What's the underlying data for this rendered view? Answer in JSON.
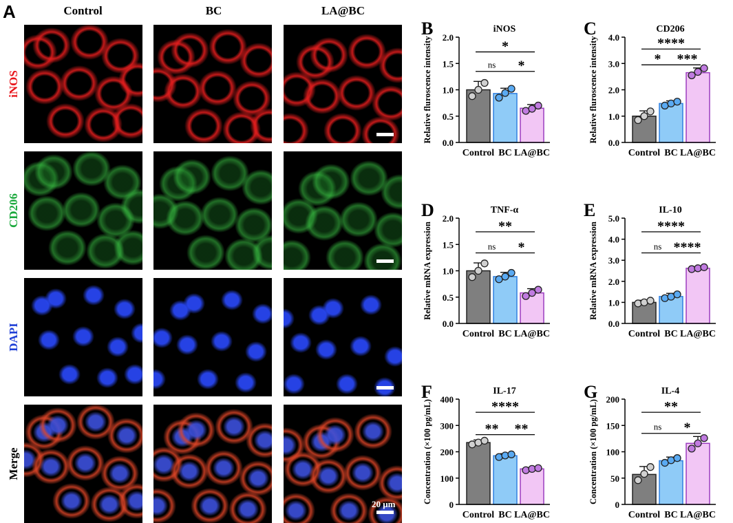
{
  "panel_a": {
    "letter": "A",
    "columns": [
      "Control",
      "BC",
      "LA@BC"
    ],
    "rows": [
      {
        "label": "iNOS",
        "color": "#e8141a"
      },
      {
        "label": "CD206",
        "color": "#19a83b"
      },
      {
        "label": "DAPI",
        "color": "#1f3fd6"
      },
      {
        "label": "Merge",
        "color": "#000000"
      }
    ],
    "scale_label": "20 μm"
  },
  "chart_data": [
    {
      "letter": "B",
      "type": "bar",
      "title": "iNOS",
      "xlabel": "",
      "ylabel": "Relative fluroscence intensity",
      "categories": [
        "Control",
        "BC",
        "LA@BC"
      ],
      "values": [
        1.0,
        0.93,
        0.65
      ],
      "errors": [
        0.16,
        0.1,
        0.07
      ],
      "points": [
        [
          0.88,
          1.0,
          1.13
        ],
        [
          0.85,
          0.94,
          1.02
        ],
        [
          0.6,
          0.64,
          0.7
        ]
      ],
      "ylim": [
        0,
        2.0
      ],
      "yticks": [
        "0.0",
        "0.5",
        "1.0",
        "1.5",
        "2.0"
      ],
      "sig": [
        {
          "from": 0,
          "to": 2,
          "label": "*",
          "y": 1.72
        },
        {
          "from": 0,
          "to": 1,
          "label": "ns",
          "y": 1.35
        },
        {
          "from": 1,
          "to": 2,
          "label": "*",
          "y": 1.35
        }
      ]
    },
    {
      "letter": "C",
      "type": "bar",
      "title": "CD206",
      "xlabel": "",
      "ylabel": "Relative fluroscence intensity",
      "categories": [
        "Control",
        "BC",
        "LA@BC"
      ],
      "values": [
        1.0,
        1.48,
        2.65
      ],
      "errors": [
        0.2,
        0.1,
        0.18
      ],
      "points": [
        [
          0.85,
          1.0,
          1.18
        ],
        [
          1.4,
          1.48,
          1.55
        ],
        [
          2.55,
          2.68,
          2.82
        ]
      ],
      "ylim": [
        0,
        4.0
      ],
      "yticks": [
        "0.0",
        "1.0",
        "2.0",
        "3.0",
        "4.0"
      ],
      "sig": [
        {
          "from": 0,
          "to": 2,
          "label": "****",
          "y": 3.55
        },
        {
          "from": 0,
          "to": 1,
          "label": "*",
          "y": 2.95
        },
        {
          "from": 1,
          "to": 2,
          "label": "***",
          "y": 2.95
        }
      ]
    },
    {
      "letter": "D",
      "type": "bar",
      "title": "TNF-α",
      "xlabel": "",
      "ylabel": "Relative mRNA expression",
      "categories": [
        "Control",
        "BC",
        "LA@BC"
      ],
      "values": [
        1.0,
        0.89,
        0.58
      ],
      "errors": [
        0.15,
        0.08,
        0.08
      ],
      "points": [
        [
          0.88,
          1.0,
          1.14
        ],
        [
          0.84,
          0.89,
          0.96
        ],
        [
          0.52,
          0.58,
          0.64
        ]
      ],
      "ylim": [
        0,
        2.0
      ],
      "yticks": [
        "0.0",
        "0.5",
        "1.0",
        "1.5",
        "2.0"
      ],
      "sig": [
        {
          "from": 0,
          "to": 2,
          "label": "**",
          "y": 1.74
        },
        {
          "from": 0,
          "to": 1,
          "label": "ns",
          "y": 1.34
        },
        {
          "from": 1,
          "to": 2,
          "label": "*",
          "y": 1.34
        }
      ]
    },
    {
      "letter": "E",
      "type": "bar",
      "title": "IL-10",
      "xlabel": "",
      "ylabel": "Relative mRNA expression",
      "categories": [
        "Control",
        "BC",
        "LA@BC"
      ],
      "values": [
        1.0,
        1.28,
        2.62
      ],
      "errors": [
        0.1,
        0.15,
        0.08
      ],
      "points": [
        [
          0.95,
          1.0,
          1.08
        ],
        [
          1.2,
          1.27,
          1.38
        ],
        [
          2.58,
          2.62,
          2.67
        ]
      ],
      "ylim": [
        0,
        5.0
      ],
      "yticks": [
        "0.0",
        "1.0",
        "2.0",
        "3.0",
        "4.0",
        "5.0"
      ],
      "sig": [
        {
          "from": 0,
          "to": 2,
          "label": "****",
          "y": 4.35
        },
        {
          "from": 0,
          "to": 1,
          "label": "ns",
          "y": 3.35
        },
        {
          "from": 1,
          "to": 2,
          "label": "****",
          "y": 3.35
        }
      ]
    },
    {
      "letter": "F",
      "type": "bar",
      "title": "IL-17",
      "xlabel": "",
      "ylabel": "Concentration (×100 pg/mL)",
      "categories": [
        "Control",
        "BC",
        "LA@BC"
      ],
      "values": [
        235,
        185,
        135
      ],
      "errors": [
        10,
        8,
        5
      ],
      "points": [
        [
          228,
          235,
          242
        ],
        [
          180,
          186,
          190
        ],
        [
          130,
          135,
          138
        ]
      ],
      "ylim": [
        0,
        400
      ],
      "yticks": [
        "0",
        "100",
        "200",
        "300",
        "400"
      ],
      "sig": [
        {
          "from": 0,
          "to": 2,
          "label": "****",
          "y": 350
        },
        {
          "from": 0,
          "to": 1,
          "label": "**",
          "y": 265
        },
        {
          "from": 1,
          "to": 2,
          "label": "**",
          "y": 265
        }
      ]
    },
    {
      "letter": "G",
      "type": "bar",
      "title": "IL-4",
      "xlabel": "",
      "ylabel": "Concentration (×100 pg/mL)",
      "categories": [
        "Control",
        "BC",
        "LA@BC"
      ],
      "values": [
        57,
        83,
        116
      ],
      "errors": [
        15,
        7,
        13
      ],
      "points": [
        [
          46,
          58,
          71
        ],
        [
          79,
          84,
          88
        ],
        [
          106,
          116,
          126
        ]
      ],
      "ylim": [
        0,
        200
      ],
      "yticks": [
        "0",
        "50",
        "100",
        "150",
        "200"
      ],
      "sig": [
        {
          "from": 0,
          "to": 2,
          "label": "**",
          "y": 175
        },
        {
          "from": 0,
          "to": 1,
          "label": "ns",
          "y": 135
        },
        {
          "from": 1,
          "to": 2,
          "label": "*",
          "y": 135
        }
      ]
    }
  ],
  "colors": {
    "control": "#7f7f7f",
    "bc": "#8fcbf7",
    "bc_edge": "#2f7fe0",
    "labc": "#f2c6f5",
    "labc_edge": "#9b3bbf",
    "point_control": "#d0d0d0",
    "point_bc": "#5aaaf2",
    "point_labc": "#c07be0"
  }
}
